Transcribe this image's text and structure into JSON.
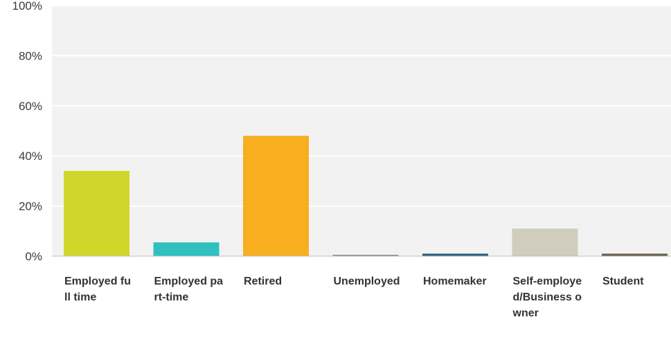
{
  "chart_data": {
    "type": "bar",
    "categories": [
      "Employed full time",
      "Employed part-time",
      "Retired",
      "Unemployed",
      "Homemaker",
      "Self-employed/Business owner",
      "Student"
    ],
    "values": [
      34,
      5.5,
      48,
      0.5,
      1,
      11,
      1
    ],
    "colors": [
      "#d0d62a",
      "#31c0c0",
      "#f7af20",
      "#7f7f7f",
      "#2a5f7a",
      "#d0cdbd",
      "#6a5e4e"
    ],
    "y_ticks": [
      "100%",
      "80%",
      "60%",
      "40%",
      "20%",
      "0%"
    ],
    "ylim": [
      0,
      100
    ],
    "grid": true,
    "legend": "none",
    "title": "",
    "xlabel": "",
    "ylabel": ""
  }
}
